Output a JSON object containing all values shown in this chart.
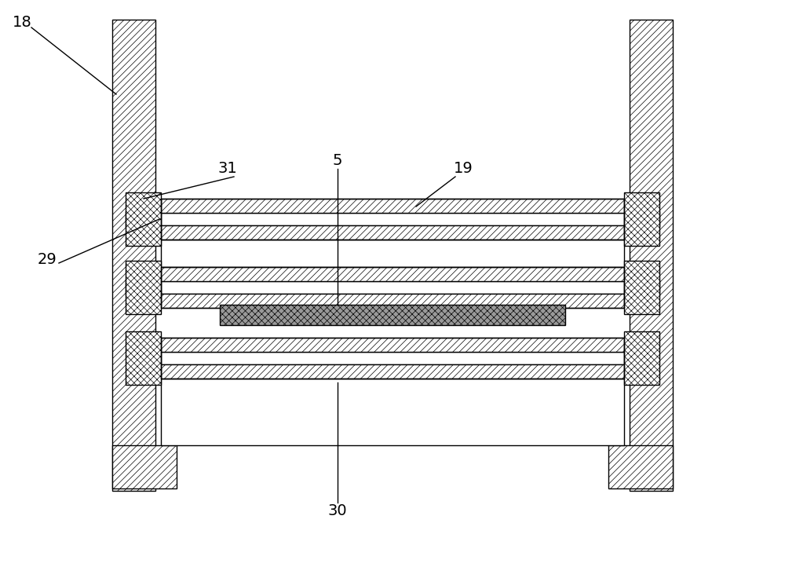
{
  "bg_color": "#ffffff",
  "line_color": "#000000",
  "fig_width": 10.0,
  "fig_height": 7.22,
  "label_fontsize": 14,
  "lw": 1.0,
  "hatch_lw": 0.5
}
